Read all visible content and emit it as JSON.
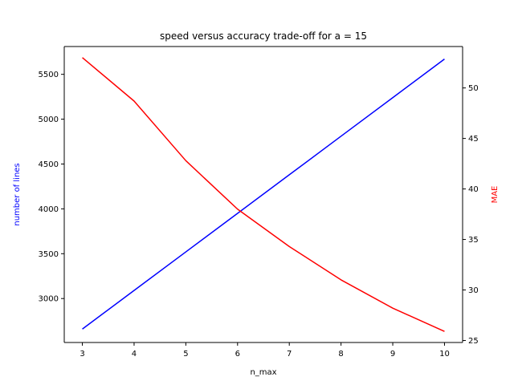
{
  "chart_data": {
    "type": "line",
    "title": "speed versus accuracy trade-off for a = 15",
    "xlabel": "n_max",
    "ylabel_left": "number of lines",
    "ylabel_right": "MAE",
    "x": [
      3,
      4,
      5,
      6,
      7,
      8,
      9,
      10
    ],
    "xlim": [
      2.65,
      10.35
    ],
    "ylim_left": [
      2510,
      5810
    ],
    "ylim_right": [
      24.8,
      54.1
    ],
    "xticks": [
      3,
      4,
      5,
      6,
      7,
      8,
      9,
      10
    ],
    "yticks_left": [
      3000,
      3500,
      4000,
      4500,
      5000,
      5500
    ],
    "yticks_right": [
      25,
      30,
      35,
      40,
      45,
      50
    ],
    "grid": false,
    "series": [
      {
        "axis": "left",
        "color": "#0000ff",
        "values": [
          2660,
          3090,
          3520,
          3950,
          4380,
          4810,
          5240,
          5670
        ]
      },
      {
        "axis": "right",
        "color": "#ff0000",
        "values": [
          53.0,
          48.7,
          42.8,
          38.0,
          34.3,
          31.0,
          28.2,
          25.9
        ]
      }
    ]
  }
}
